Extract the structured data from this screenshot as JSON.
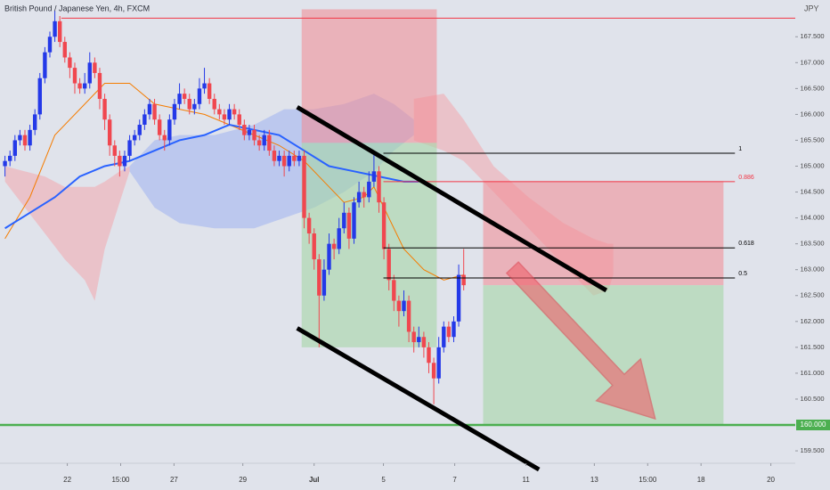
{
  "chart_data": {
    "type": "candlestick",
    "title": "British Pound / Japanese Yen, 4h, FXCM",
    "currency": "JPY",
    "up_color": "#2439e8",
    "down_color": "#f0474f",
    "grid": false,
    "xlim": [
      -1,
      158.5
    ],
    "ylim": [
      159.26,
      168.21
    ],
    "xticks": [
      {
        "value": 12.5,
        "label": "22"
      },
      {
        "value": 23.2,
        "label": "15:00"
      },
      {
        "value": 33.9,
        "label": "27"
      },
      {
        "value": 47.7,
        "label": "29"
      },
      {
        "value": 62,
        "label": "Jul"
      },
      {
        "value": 75.9,
        "label": "5"
      },
      {
        "value": 90.2,
        "label": "7"
      },
      {
        "value": 104.5,
        "label": "11"
      },
      {
        "value": 118.2,
        "label": "13"
      },
      {
        "value": 128.9,
        "label": "15:00"
      },
      {
        "value": 139.6,
        "label": "18"
      },
      {
        "value": 153.6,
        "label": "20"
      }
    ],
    "yticks": [
      {
        "value": 159.5,
        "label": "159.500"
      },
      {
        "value": 160.5,
        "label": "160.500"
      },
      {
        "value": 161,
        "label": "161.000"
      },
      {
        "value": 161.5,
        "label": "161.500"
      },
      {
        "value": 162,
        "label": "162.000"
      },
      {
        "value": 162.5,
        "label": "162.500"
      },
      {
        "value": 163,
        "label": "163.000"
      },
      {
        "value": 163.5,
        "label": "163.500"
      },
      {
        "value": 164,
        "label": "164.000"
      },
      {
        "value": 164.5,
        "label": "164.500"
      },
      {
        "value": 165,
        "label": "165.000"
      },
      {
        "value": 165.5,
        "label": "165.500"
      },
      {
        "value": 166,
        "label": "166.000"
      },
      {
        "value": 166.5,
        "label": "166.500"
      },
      {
        "value": 167,
        "label": "167.000"
      },
      {
        "value": 167.5,
        "label": "167.500"
      }
    ],
    "x": [
      0,
      1,
      2,
      3,
      4,
      5,
      6,
      7,
      8,
      9,
      10,
      11,
      12,
      13,
      14,
      15,
      16,
      17,
      18,
      19,
      20,
      21,
      22,
      23,
      24,
      25,
      26,
      27,
      28,
      29,
      30,
      31,
      32,
      33,
      34,
      35,
      36,
      37,
      38,
      39,
      40,
      41,
      42,
      43,
      44,
      45,
      46,
      47,
      48,
      49,
      50,
      51,
      52,
      53,
      54,
      55,
      56,
      57,
      58,
      59,
      60,
      61,
      62,
      63,
      64,
      65,
      66,
      67,
      68,
      69,
      70,
      71,
      72,
      73,
      74,
      75,
      76,
      77,
      78,
      79,
      80,
      81,
      82,
      83,
      84,
      85,
      86,
      87,
      88,
      89,
      90,
      91,
      92
    ],
    "ohlc": [
      [
        165.0,
        165.2,
        164.8,
        165.1
      ],
      [
        165.1,
        165.3,
        165.0,
        165.2
      ],
      [
        165.2,
        165.6,
        165.1,
        165.5
      ],
      [
        165.5,
        165.7,
        165.4,
        165.6
      ],
      [
        165.6,
        165.7,
        165.3,
        165.4
      ],
      [
        165.4,
        165.8,
        165.3,
        165.7
      ],
      [
        165.7,
        166.1,
        165.6,
        166.0
      ],
      [
        166.0,
        166.8,
        165.9,
        166.7
      ],
      [
        166.7,
        167.3,
        166.6,
        167.2
      ],
      [
        167.2,
        167.6,
        167.1,
        167.5
      ],
      [
        167.5,
        168.0,
        167.4,
        167.8
      ],
      [
        167.8,
        167.9,
        167.3,
        167.4
      ],
      [
        167.4,
        167.5,
        167.0,
        167.1
      ],
      [
        167.1,
        167.2,
        166.7,
        166.9
      ],
      [
        166.9,
        167.0,
        166.4,
        166.6
      ],
      [
        166.6,
        166.7,
        166.4,
        166.5
      ],
      [
        166.5,
        166.8,
        166.4,
        166.6
      ],
      [
        166.6,
        167.2,
        166.5,
        167.0
      ],
      [
        167.0,
        167.1,
        166.7,
        166.8
      ],
      [
        166.8,
        166.9,
        166.1,
        166.3
      ],
      [
        166.3,
        166.4,
        165.7,
        165.9
      ],
      [
        165.9,
        166.0,
        165.2,
        165.4
      ],
      [
        165.4,
        165.5,
        165.0,
        165.2
      ],
      [
        165.2,
        165.3,
        164.8,
        165.0
      ],
      [
        165.0,
        165.3,
        164.9,
        165.2
      ],
      [
        165.2,
        165.6,
        165.1,
        165.5
      ],
      [
        165.5,
        165.7,
        165.4,
        165.6
      ],
      [
        165.6,
        165.9,
        165.5,
        165.8
      ],
      [
        165.8,
        166.1,
        165.7,
        166.0
      ],
      [
        166.0,
        166.3,
        165.9,
        166.2
      ],
      [
        166.2,
        166.3,
        165.8,
        165.9
      ],
      [
        165.9,
        166.0,
        165.5,
        165.6
      ],
      [
        165.6,
        165.7,
        165.3,
        165.5
      ],
      [
        165.5,
        166.0,
        165.4,
        165.9
      ],
      [
        165.9,
        166.3,
        165.8,
        166.2
      ],
      [
        166.2,
        166.6,
        166.1,
        166.4
      ],
      [
        166.4,
        166.5,
        166.2,
        166.3
      ],
      [
        166.3,
        166.4,
        166.0,
        166.1
      ],
      [
        166.1,
        166.3,
        166.0,
        166.2
      ],
      [
        166.2,
        166.7,
        166.1,
        166.5
      ],
      [
        166.5,
        166.9,
        166.4,
        166.6
      ],
      [
        166.6,
        166.7,
        166.2,
        166.3
      ],
      [
        166.3,
        166.4,
        166.0,
        166.1
      ],
      [
        166.1,
        166.2,
        165.9,
        166.0
      ],
      [
        166.0,
        166.1,
        165.8,
        165.9
      ],
      [
        165.9,
        166.2,
        165.8,
        166.1
      ],
      [
        166.1,
        166.2,
        165.9,
        166.0
      ],
      [
        166.0,
        166.1,
        165.7,
        165.8
      ],
      [
        165.8,
        165.9,
        165.5,
        165.6
      ],
      [
        165.6,
        165.8,
        165.5,
        165.7
      ],
      [
        165.7,
        165.8,
        165.4,
        165.5
      ],
      [
        165.5,
        165.6,
        165.3,
        165.4
      ],
      [
        165.4,
        165.7,
        165.3,
        165.6
      ],
      [
        165.6,
        165.7,
        165.2,
        165.3
      ],
      [
        165.3,
        165.4,
        165.0,
        165.1
      ],
      [
        165.1,
        165.3,
        165.0,
        165.2
      ],
      [
        165.2,
        165.3,
        164.8,
        165.0
      ],
      [
        165.0,
        165.3,
        164.9,
        165.2
      ],
      [
        165.2,
        165.3,
        165.0,
        165.1
      ],
      [
        165.1,
        165.3,
        165.0,
        165.2
      ],
      [
        165.2,
        165.3,
        163.8,
        164.0
      ],
      [
        164.0,
        164.1,
        163.5,
        163.7
      ],
      [
        163.7,
        163.8,
        163.0,
        163.2
      ],
      [
        163.2,
        163.3,
        161.5,
        162.5
      ],
      [
        162.5,
        163.2,
        162.4,
        163.0
      ],
      [
        163.0,
        163.7,
        162.9,
        163.5
      ],
      [
        163.5,
        163.6,
        163.2,
        163.4
      ],
      [
        163.4,
        164.0,
        163.3,
        163.8
      ],
      [
        163.8,
        164.3,
        163.7,
        164.1
      ],
      [
        164.1,
        164.2,
        163.4,
        163.6
      ],
      [
        163.6,
        164.4,
        163.5,
        164.3
      ],
      [
        164.3,
        164.7,
        164.2,
        164.5
      ],
      [
        164.5,
        164.6,
        164.2,
        164.4
      ],
      [
        164.4,
        164.9,
        164.3,
        164.7
      ],
      [
        164.7,
        165.3,
        164.6,
        164.9
      ],
      [
        164.9,
        165.0,
        164.1,
        164.3
      ],
      [
        164.3,
        164.4,
        163.2,
        163.4
      ],
      [
        163.4,
        163.5,
        162.6,
        162.8
      ],
      [
        162.8,
        162.9,
        162.2,
        162.4
      ],
      [
        162.4,
        162.5,
        161.9,
        162.2
      ],
      [
        162.2,
        162.6,
        162.1,
        162.4
      ],
      [
        162.4,
        162.5,
        161.6,
        161.8
      ],
      [
        161.8,
        161.9,
        161.4,
        161.6
      ],
      [
        161.6,
        161.9,
        161.5,
        161.7
      ],
      [
        161.7,
        161.8,
        161.3,
        161.5
      ],
      [
        161.5,
        161.6,
        161.0,
        161.2
      ],
      [
        161.2,
        161.3,
        160.4,
        160.9
      ],
      [
        160.9,
        161.7,
        160.8,
        161.5
      ],
      [
        161.5,
        162.0,
        161.4,
        161.9
      ],
      [
        161.9,
        162.0,
        161.6,
        161.7
      ],
      [
        161.7,
        162.1,
        161.6,
        162.0
      ],
      [
        162.0,
        163.1,
        161.9,
        162.9
      ],
      [
        162.9,
        163.4,
        162.6,
        162.7
      ]
    ],
    "ma": [
      {
        "color": "#f57c00",
        "points": [
          [
            0,
            163.6
          ],
          [
            5,
            164.4
          ],
          [
            10,
            165.6
          ],
          [
            15,
            166.1
          ],
          [
            20,
            166.6
          ],
          [
            25,
            166.6
          ],
          [
            30,
            166.2
          ],
          [
            35,
            166.1
          ],
          [
            40,
            166.0
          ],
          [
            45,
            165.8
          ],
          [
            50,
            165.6
          ],
          [
            55,
            165.4
          ],
          [
            60,
            165.1
          ],
          [
            64,
            164.7
          ],
          [
            68,
            164.3
          ],
          [
            72,
            164.4
          ],
          [
            74,
            164.6
          ],
          [
            76,
            164.2
          ],
          [
            80,
            163.4
          ],
          [
            84,
            163.0
          ],
          [
            88,
            162.8
          ],
          [
            92,
            162.9
          ]
        ]
      },
      {
        "color": "#2962ff",
        "points": [
          [
            0,
            163.8
          ],
          [
            5,
            164.1
          ],
          [
            10,
            164.4
          ],
          [
            15,
            164.8
          ],
          [
            20,
            165.0
          ],
          [
            25,
            165.1
          ],
          [
            30,
            165.3
          ],
          [
            35,
            165.5
          ],
          [
            40,
            165.6
          ],
          [
            45,
            165.8
          ],
          [
            50,
            165.7
          ],
          [
            55,
            165.6
          ],
          [
            60,
            165.3
          ],
          [
            65,
            165.0
          ],
          [
            70,
            164.9
          ],
          [
            75,
            164.8
          ],
          [
            80,
            164.7
          ],
          [
            83,
            164.7
          ]
        ]
      }
    ],
    "clouds": [
      {
        "color": "#f2a7ad",
        "points": [
          [
            0,
            165.0,
            164.7
          ],
          [
            4,
            164.9,
            164.2
          ],
          [
            8,
            164.8,
            163.7
          ],
          [
            12,
            164.6,
            163.2
          ],
          [
            16,
            164.6,
            162.8
          ],
          [
            18,
            164.6,
            162.4
          ],
          [
            20,
            164.7,
            163.4
          ],
          [
            23,
            164.9,
            164.3
          ],
          [
            25,
            165.0,
            164.9
          ]
        ]
      },
      {
        "color": "#9fb2f0",
        "points": [
          [
            25,
            165.0,
            164.9
          ],
          [
            30,
            165.5,
            164.2
          ],
          [
            35,
            165.6,
            163.9
          ],
          [
            42,
            165.6,
            163.8
          ],
          [
            50,
            165.8,
            163.8
          ],
          [
            56,
            166.1,
            164.0
          ],
          [
            62,
            166.1,
            164.2
          ],
          [
            68,
            166.2,
            164.5
          ],
          [
            74,
            166.4,
            164.9
          ],
          [
            78,
            166.2,
            165.3
          ],
          [
            82,
            165.9,
            165.6
          ]
        ]
      },
      {
        "color": "#f2a7ad",
        "points": [
          [
            82,
            166.3,
            165.5
          ],
          [
            88,
            166.4,
            165.3
          ],
          [
            92,
            165.9,
            165.1
          ],
          [
            98,
            165.0,
            164.5
          ],
          [
            105,
            164.4,
            163.8
          ],
          [
            112,
            163.9,
            163.1
          ],
          [
            118,
            163.6,
            162.5
          ],
          [
            121,
            163.5,
            162.6
          ],
          [
            122,
            163.5,
            162.9
          ]
        ]
      }
    ],
    "positions": [
      {
        "x": [
          59.5,
          86.6
        ],
        "stop": 168.03,
        "entry": 165.45,
        "target": 161.5
      },
      {
        "x": [
          95.9,
          144.1
        ],
        "stop": 164.71,
        "entry": 162.7,
        "target": 160.0
      }
    ],
    "fib_x": [
      75.9,
      146.4
    ],
    "fib_levels": [
      {
        "label": "1",
        "value": 165.25,
        "color": "#000000"
      },
      {
        "label": "0.886",
        "value": 164.7,
        "color": "#f23645"
      },
      {
        "label": "0.618",
        "value": 163.42,
        "color": "#000000"
      },
      {
        "label": "0.5",
        "value": 162.84,
        "color": "#000000"
      }
    ],
    "levels": [
      {
        "value": 167.86,
        "start": 11.3,
        "color": "#f23645"
      },
      {
        "value": 160.0,
        "start": -1,
        "color": "#4caf50",
        "label": "160.000"
      }
    ],
    "trendlines": [
      {
        "x": [
          58.6,
          120.6
        ],
        "y": [
          166.14,
          162.6
        ]
      },
      {
        "x": [
          58.6,
          107.1
        ],
        "y": [
          161.87,
          159.14
        ]
      }
    ],
    "arrow": {
      "x": [
        101.8,
        130.4
      ],
      "y": [
        163.04,
        160.12
      ],
      "color": "#f0606a"
    }
  }
}
